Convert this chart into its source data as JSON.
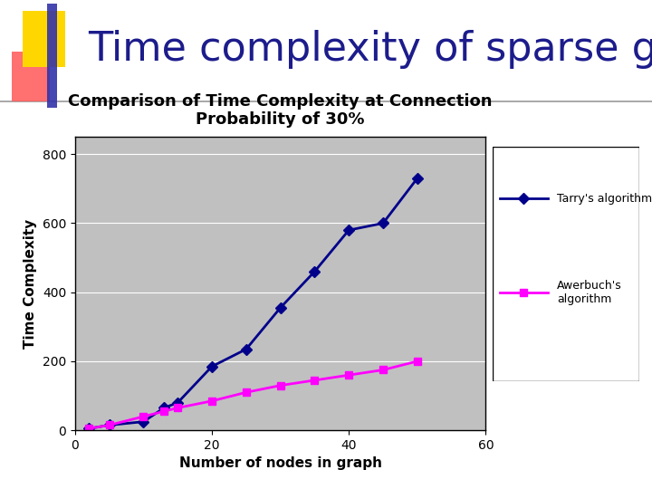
{
  "slide_title": "Time complexity of sparse graphs",
  "chart_title": "Comparison of Time Complexity at Connection\nProbability of 30%",
  "xlabel": "Number of nodes in graph",
  "ylabel": "Time Complexity",
  "tarry_x": [
    2,
    5,
    10,
    13,
    15,
    20,
    25,
    30,
    35,
    40,
    45,
    50
  ],
  "tarry_y": [
    5,
    15,
    25,
    65,
    80,
    185,
    235,
    355,
    460,
    580,
    600,
    730
  ],
  "awerbuch_x": [
    2,
    5,
    10,
    13,
    15,
    20,
    25,
    30,
    35,
    40,
    45,
    50
  ],
  "awerbuch_y": [
    5,
    15,
    40,
    55,
    65,
    85,
    110,
    130,
    145,
    160,
    175,
    200
  ],
  "tarry_color": "#00008B",
  "awerbuch_color": "#FF00FF",
  "plot_bg_color": "#C0C0C0",
  "outer_bg_color": "#FFFFFF",
  "xlim": [
    0,
    60
  ],
  "ylim": [
    0,
    850
  ],
  "xticks": [
    0,
    20,
    40,
    60
  ],
  "yticks": [
    0,
    200,
    400,
    600,
    800
  ],
  "slide_title_color": "#1C1C8C",
  "slide_title_fontsize": 32,
  "chart_title_fontsize": 13,
  "axis_label_fontsize": 11,
  "tick_fontsize": 10,
  "legend_tarry": "Tarry's algorithm",
  "legend_awerbuch": "Awerbuch's\nalgorithm",
  "slide_bg_color": "#FFFFFF",
  "decoration_yellow": "#FFD700",
  "decoration_red": "#FF6060",
  "decoration_blue": "#3333AA"
}
